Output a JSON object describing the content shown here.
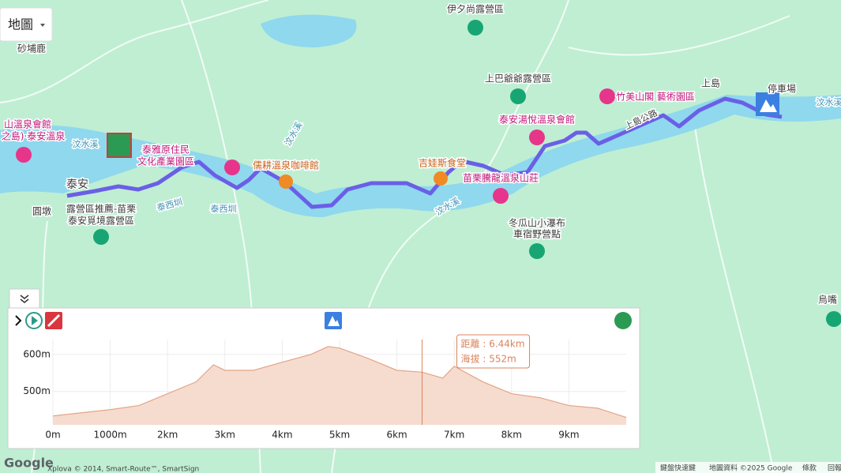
{
  "map": {
    "button": "地圖",
    "labels": [
      "伊夕尚露營區",
      "砂埔鹿",
      "山溫泉會館",
      "之島)·泰安溫泉",
      "汶水溪",
      "泰雅原住民",
      "文化產業園區",
      "儒耕溫泉咖啡館",
      "吉娃斯食堂",
      "苗栗騰龍溫泉山莊",
      "泰安湯悅溫泉會館",
      "上巴爺爺露營區",
      "竹美山閣 藝術園區",
      "上島",
      "停車場",
      "汶水溪",
      "泰安",
      "圓墩",
      "露營區推薦-苗栗",
      "泰安覓境露營區",
      "泰西圳",
      "泰西圳",
      "冬瓜山小瀑布",
      "車宿野營點",
      "上島公路",
      "汶水溪",
      "汶水溪",
      "烏嘴"
    ],
    "footer": {
      "logo": "Google",
      "credit": "Xplova © 2014, Smart-Route™, SmartSign",
      "shortcuts": "鍵盤快速鍵",
      "map_data": "地圖資料 ©2025 Google",
      "terms": "條款",
      "report": "回報"
    }
  },
  "chart_data": {
    "type": "area",
    "x": [
      0,
      1,
      1.5,
      2,
      2.5,
      2.8,
      3,
      3.5,
      4,
      4.5,
      4.8,
      5,
      5.5,
      6,
      6.44,
      6.8,
      7,
      7.5,
      8,
      8.5,
      9,
      9.5,
      10
    ],
    "values": [
      434,
      451,
      462,
      494,
      526,
      572,
      557,
      557,
      579,
      600,
      621,
      617,
      589,
      557,
      552,
      536,
      568,
      526,
      494,
      483,
      462,
      455,
      430
    ],
    "color": "#f6dccf",
    "line_color": "#e3a488",
    "xlim": [
      0,
      10
    ],
    "ylim": [
      410,
      640
    ],
    "xticks": [
      {
        "value": 0,
        "label": "0m"
      },
      {
        "value": 1,
        "label": "1000m"
      },
      {
        "value": 2,
        "label": "2km"
      },
      {
        "value": 3,
        "label": "3km"
      },
      {
        "value": 4,
        "label": "4km"
      },
      {
        "value": 5,
        "label": "5km"
      },
      {
        "value": 6,
        "label": "6km"
      },
      {
        "value": 7,
        "label": "7km"
      },
      {
        "value": 8,
        "label": "8km"
      },
      {
        "value": 9,
        "label": "9km"
      }
    ],
    "yticks": [
      {
        "value": 500,
        "label": "500m"
      },
      {
        "value": 600,
        "label": "600m"
      }
    ],
    "grid": true,
    "cursor": {
      "x": 6.44,
      "distance_label": "距離 : 6.44km",
      "elevation_label": "海拔 : 552m",
      "color": "#d9845c"
    }
  }
}
